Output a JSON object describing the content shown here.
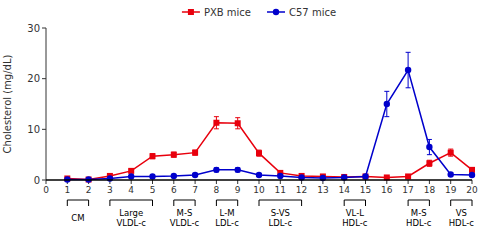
{
  "chart_data": {
    "type": "line",
    "x": [
      1,
      2,
      3,
      4,
      5,
      6,
      7,
      8,
      9,
      10,
      11,
      12,
      13,
      14,
      15,
      16,
      17,
      18,
      19,
      20
    ],
    "series": [
      {
        "name": "PXB mice",
        "color": "#e8000d",
        "marker": "square",
        "values": [
          0.3,
          0.1,
          0.8,
          1.8,
          4.7,
          5.0,
          5.4,
          11.3,
          11.2,
          5.3,
          1.4,
          0.8,
          0.7,
          0.6,
          0.7,
          0.5,
          0.7,
          3.3,
          5.4,
          2.0
        ],
        "errors": [
          0.15,
          0.05,
          0.2,
          0.3,
          0.5,
          0.5,
          0.5,
          1.2,
          1.1,
          0.6,
          0.3,
          0.2,
          0.15,
          0.15,
          0.15,
          0.15,
          0.2,
          0.6,
          0.7,
          0.3
        ]
      },
      {
        "name": "C57 mice",
        "color": "#0000cc",
        "marker": "circle",
        "values": [
          0.1,
          0.1,
          0.3,
          0.7,
          0.7,
          0.8,
          1.0,
          2.0,
          2.0,
          1.0,
          0.8,
          0.5,
          0.4,
          0.5,
          0.7,
          15.0,
          21.7,
          6.5,
          1.1,
          1.0
        ],
        "errors": [
          0.05,
          0.05,
          0.1,
          0.2,
          0.2,
          0.2,
          0.3,
          0.4,
          0.4,
          0.3,
          0.2,
          0.15,
          0.1,
          0.1,
          0.2,
          2.5,
          3.5,
          1.5,
          0.3,
          0.3
        ]
      }
    ],
    "y_label": "Cholesterol (mg/dL)",
    "xlim": [
      0,
      20
    ],
    "ylim": [
      0,
      30
    ],
    "xticks": [
      0,
      1,
      2,
      3,
      4,
      5,
      6,
      7,
      8,
      9,
      10,
      11,
      12,
      13,
      14,
      15,
      16,
      17,
      18,
      19,
      20
    ],
    "yticks": [
      0,
      10,
      20,
      30
    ],
    "grid": false,
    "legend": "top",
    "annotations": [
      {
        "x1": 1,
        "x2": 2,
        "labels": [
          "CM"
        ]
      },
      {
        "x1": 3,
        "x2": 5,
        "labels": [
          "Large",
          "VLDL-c"
        ]
      },
      {
        "x1": 6,
        "x2": 7,
        "labels": [
          "M-S",
          "VLDL-c"
        ]
      },
      {
        "x1": 8,
        "x2": 9,
        "labels": [
          "L-M",
          "LDL-c"
        ]
      },
      {
        "x1": 10,
        "x2": 12,
        "labels": [
          "S-VS",
          "LDL-c"
        ]
      },
      {
        "x1": 14,
        "x2": 15,
        "labels": [
          "VL-L",
          "HDL-c"
        ]
      },
      {
        "x1": 17,
        "x2": 18,
        "labels": [
          "M-S",
          "HDL-c"
        ]
      },
      {
        "x1": 19,
        "x2": 20,
        "labels": [
          "VS",
          "HDL-c"
        ]
      }
    ]
  }
}
